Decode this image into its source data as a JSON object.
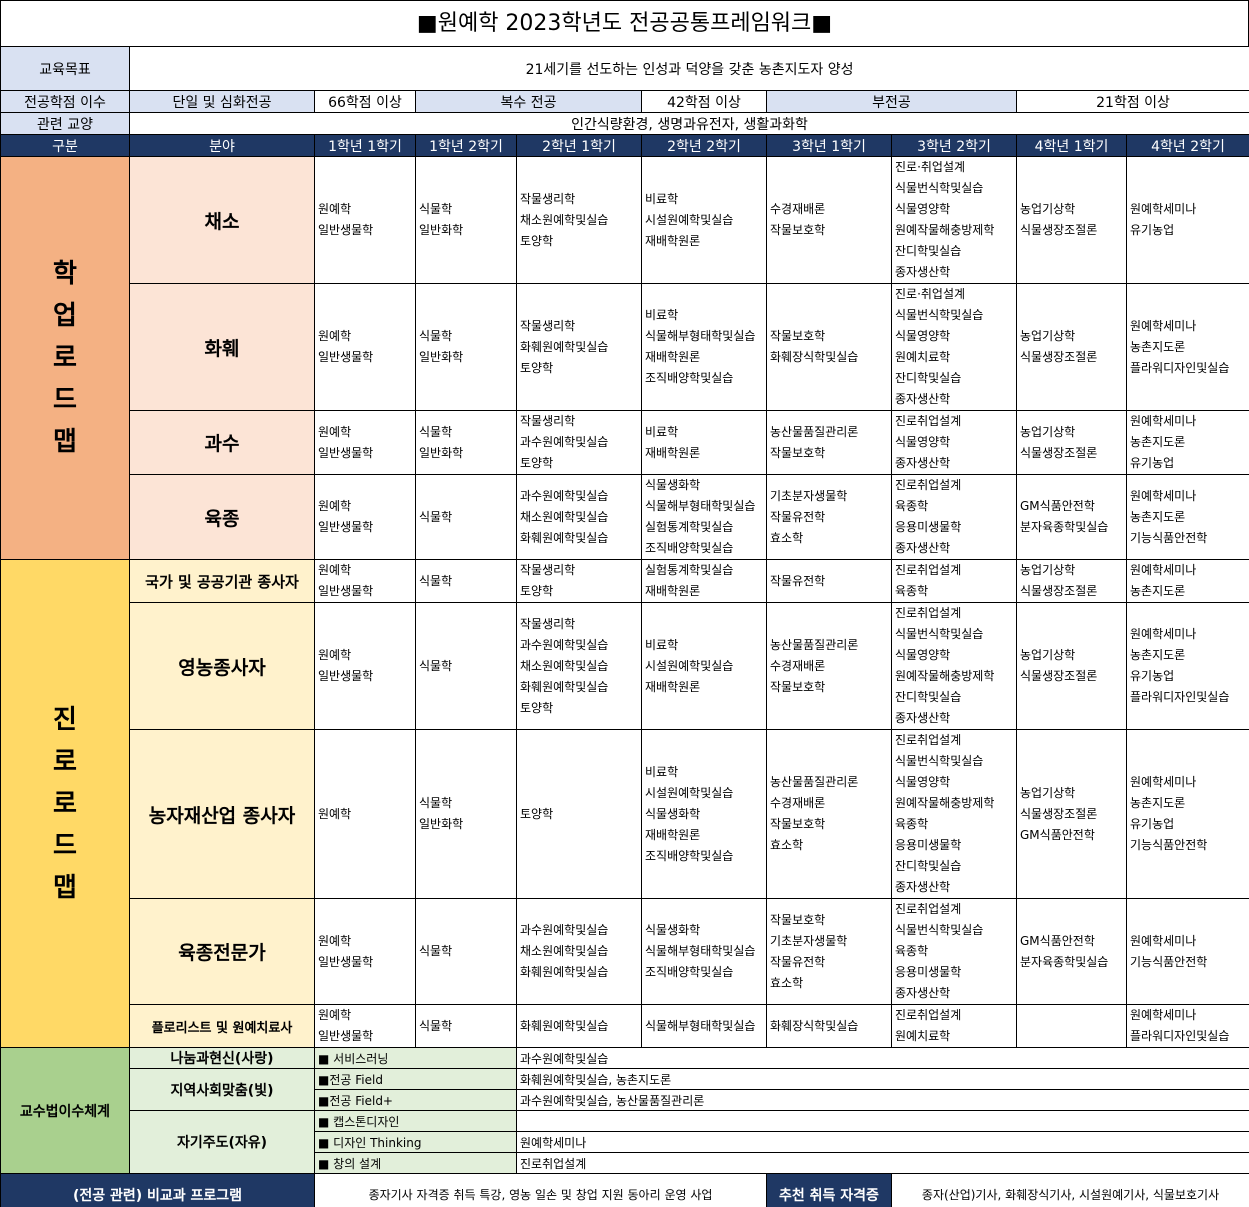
{
  "title": "■원예학 2023학년도 전공공통프레임워크■",
  "goal": {
    "label": "교육목표",
    "value": "21세기를 선도하는 인성과 덕양을 갖춘 농촌지도자 양성"
  },
  "credits": {
    "label": "전공학점 이수",
    "single": "단일 및 심화전공",
    "single_value": "66학점 이상",
    "double": "복수 전공",
    "double_value": "42학점 이상",
    "minor": "부전공",
    "minor_value": "21학점 이상"
  },
  "liberal": {
    "label": "관련 교양",
    "value": "인간식량환경, 생명과유전자, 생활과화학"
  },
  "header": [
    "구분",
    "분야",
    "1학년 1학기",
    "1학년 2학기",
    "2학년 1학기",
    "2학년 2학기",
    "3학년 1학기",
    "3학년 2학기",
    "4학년 1학기",
    "4학년 2학기"
  ],
  "colors": {
    "navy": "#1f3864",
    "academic": "#f4b183",
    "career": "#ffd966",
    "teaching": "#a9d08e"
  },
  "sections": [
    {
      "label": "학업로드맵",
      "rows": [
        {
          "field": "채소",
          "cells": [
            [
              "원예학",
              "일반생물학"
            ],
            [
              "식물학",
              "일반화학"
            ],
            [
              "작물생리학",
              "채소원예학및실습",
              "토양학"
            ],
            [
              "비료학",
              "시설원예학및실습",
              "재배학원론"
            ],
            [
              "수경재배론",
              "작물보호학"
            ],
            [
              "진로·취업설계",
              "식물번식학및실습",
              "식물영양학",
              "원예작물해충방제학",
              "잔디학및실습",
              "종자생산학"
            ],
            [
              "농업기상학",
              "식물생장조절론"
            ],
            [
              "원예학세미나",
              "유기농업"
            ]
          ]
        },
        {
          "field": "화훼",
          "cells": [
            [
              "원예학",
              "일반생물학"
            ],
            [
              "식물학",
              "일반화학"
            ],
            [
              "작물생리학",
              "화훼원예학및실습",
              "토양학"
            ],
            [
              "비료학",
              "식물해부형태학및실습",
              "재배학원론",
              "조직배양학및실습"
            ],
            [
              "작물보호학",
              "화훼장식학및실습"
            ],
            [
              "진로·취업설계",
              "식물번식학및실습",
              "식물영양학",
              "원예치료학",
              "잔디학및실습",
              "종자생산학"
            ],
            [
              "농업기상학",
              "식물생장조절론"
            ],
            [
              "원예학세미나",
              "농촌지도론",
              "플라워디자인및실습"
            ]
          ]
        },
        {
          "field": "과수",
          "cells": [
            [
              "원예학",
              "일반생물학"
            ],
            [
              "식물학",
              "일반화학"
            ],
            [
              "작물생리학",
              "과수원예학및실습",
              "토양학"
            ],
            [
              "비료학",
              "재배학원론"
            ],
            [
              "농산물품질관리론",
              "작물보호학"
            ],
            [
              "진로취업설계",
              "식물영양학",
              "종자생산학"
            ],
            [
              "농업기상학",
              "식물생장조절론"
            ],
            [
              "원예학세미나",
              "농촌지도론",
              "유기농업"
            ]
          ]
        },
        {
          "field": "육종",
          "cells": [
            [
              "원예학",
              "일반생물학"
            ],
            [
              "식물학"
            ],
            [
              "과수원예학및실습",
              "채소원예학및실습",
              "화훼원예학및실습"
            ],
            [
              "식물생화학",
              "식물해부형태학및실습",
              "실험통계학및실습",
              "조직배양학및실습"
            ],
            [
              "기초분자생물학",
              "작물유전학",
              "효소학"
            ],
            [
              "진로취업설계",
              "육종학",
              "응용미생물학",
              "종자생산학"
            ],
            [
              "GM식품안전학",
              "분자육종학및실습"
            ],
            [
              "원예학세미나",
              "농촌지도론",
              "기능식품안전학"
            ]
          ]
        }
      ]
    },
    {
      "label": "진로로드맵",
      "rows": [
        {
          "field": "국가 및 공공기관 종사자",
          "cells": [
            [
              "원예학",
              "일반생물학"
            ],
            [
              "식물학"
            ],
            [
              "작물생리학",
              "토양학"
            ],
            [
              "실험통계학및실습",
              "재배학원론"
            ],
            [
              "작물유전학"
            ],
            [
              "진로취업설계",
              "육종학"
            ],
            [
              "농업기상학",
              "식물생장조절론"
            ],
            [
              "원예학세미나",
              "농촌지도론"
            ]
          ]
        },
        {
          "field": "영농종사자",
          "cells": [
            [
              "원예학",
              "일반생물학"
            ],
            [
              "식물학"
            ],
            [
              "작물생리학",
              "과수원예학및실습",
              "채소원예학및실습",
              "화훼원예학및실습",
              "토양학"
            ],
            [
              "비료학",
              "시설원예학및실습",
              "재배학원론"
            ],
            [
              "농산물품질관리론",
              "수경재배론",
              "작물보호학"
            ],
            [
              "진로취업설계",
              "식물번식학및실습",
              "식물영양학",
              "원예작물해충방제학",
              "잔디학및실습",
              "종자생산학"
            ],
            [
              "농업기상학",
              "식물생장조절론"
            ],
            [
              "원예학세미나",
              "농촌지도론",
              "유기농업",
              "플라워디자인및실습"
            ]
          ]
        },
        {
          "field": "농자재산업 종사자",
          "cells": [
            [
              "원예학"
            ],
            [
              "식물학",
              "일반화학"
            ],
            [
              "토양학"
            ],
            [
              "비료학",
              "시설원예학및실습",
              "식물생화학",
              "재배학원론",
              "조직배양학및실습"
            ],
            [
              "농산물품질관리론",
              "수경재배론",
              "작물보호학",
              "효소학"
            ],
            [
              "진로취업설계",
              "식물번식학및실습",
              "식물영양학",
              "원예작물해충방제학",
              "육종학",
              "응용미생물학",
              "잔디학및실습",
              "종자생산학"
            ],
            [
              "농업기상학",
              "식물생장조절론",
              "GM식품안전학"
            ],
            [
              "원예학세미나",
              "농촌지도론",
              "유기농업",
              "기능식품안전학"
            ]
          ]
        },
        {
          "field": "육종전문가",
          "cells": [
            [
              "원예학",
              "일반생물학"
            ],
            [
              "식물학"
            ],
            [
              "과수원예학및실습",
              "채소원예학및실습",
              "화훼원예학및실습"
            ],
            [
              "식물생화학",
              "식물해부형태학및실습",
              "조직배양학및실습"
            ],
            [
              "작물보호학",
              "기초분자생물학",
              "작물유전학",
              "효소학"
            ],
            [
              "진로취업설계",
              "식물번식학및실습",
              "육종학",
              "응용미생물학",
              "종자생산학"
            ],
            [
              "GM식품안전학",
              "분자육종학및실습"
            ],
            [
              "원예학세미나",
              "기능식품안전학"
            ]
          ]
        },
        {
          "field": "플로리스트 및 원예치료사",
          "cells": [
            [
              "원예학",
              "일반생물학"
            ],
            [
              "식물학"
            ],
            [
              "화훼원예학및실습"
            ],
            [
              "식물해부형태학및실습"
            ],
            [
              "화훼장식학및실습"
            ],
            [
              "진로취업설계",
              "원예치료학"
            ],
            [],
            [
              "원예학세미나",
              "플라워디자인및실습"
            ]
          ]
        }
      ]
    }
  ],
  "teaching": {
    "label": "교수법이수체계",
    "groups": [
      {
        "category": "나눔과현신(사랑)",
        "items": [
          {
            "program": "■ 서비스러닝",
            "courses": "과수원예학및실습"
          }
        ]
      },
      {
        "category": "지역사회맞춤(빛)",
        "items": [
          {
            "program": "■전공 Field",
            "courses": "화훼원예학및실습, 농촌지도론"
          },
          {
            "program": "■전공 Field+",
            "courses": "과수원예학및실습, 농산물품질관리론"
          }
        ]
      },
      {
        "category": "자기주도(자유)",
        "items": [
          {
            "program": "■ 캡스톤디자인",
            "courses": ""
          },
          {
            "program": "■ 디자인 Thinking",
            "courses": "원예학세미나"
          },
          {
            "program": "■ 창의 설계",
            "courses": "진로취업설계"
          }
        ]
      }
    ]
  },
  "footer": {
    "program_label": "(전공 관련) 비교과 프로그램",
    "program_value": "종자기사 자격증 취득 특강, 영농 일손 및 창업 지원 동아리 운영 사업",
    "cert_label": "추천 취득 자격증",
    "cert_value": "종자(산업)기사, 화훼장식기사, 시설원예기사, 식물보호기사"
  }
}
